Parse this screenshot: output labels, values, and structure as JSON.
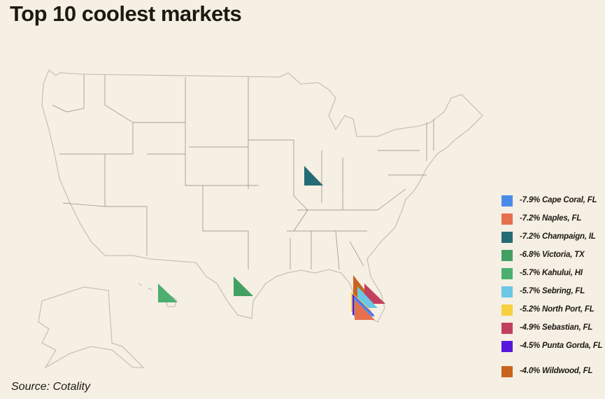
{
  "title": "Top 10 coolest markets",
  "source": "Source: Cotality",
  "legend": [
    {
      "label": "-7.9% Cape Coral, FL",
      "color": "#4a8bea"
    },
    {
      "label": "-7.2% Naples, FL",
      "color": "#e6704e"
    },
    {
      "label": "-7.2% Champaign, IL",
      "color": "#256b75"
    },
    {
      "label": "-6.8% Victoria, TX",
      "color": "#43a063"
    },
    {
      "label": "-5.7% Kahului, HI",
      "color": "#4cae6f"
    },
    {
      "label": "-5.7% Sebring, FL",
      "color": "#6cc6e6"
    },
    {
      "label": "-5.2% North Port, FL",
      "color": "#f8cf3e"
    },
    {
      "label": "-4.9% Sebastian, FL",
      "color": "#c2405f"
    },
    {
      "label": "-4.5% Punta Gorda, FL",
      "color": "#5617dd"
    },
    {
      "label": "-4.0% Wildwood, FL",
      "color": "#c8651c"
    }
  ]
}
